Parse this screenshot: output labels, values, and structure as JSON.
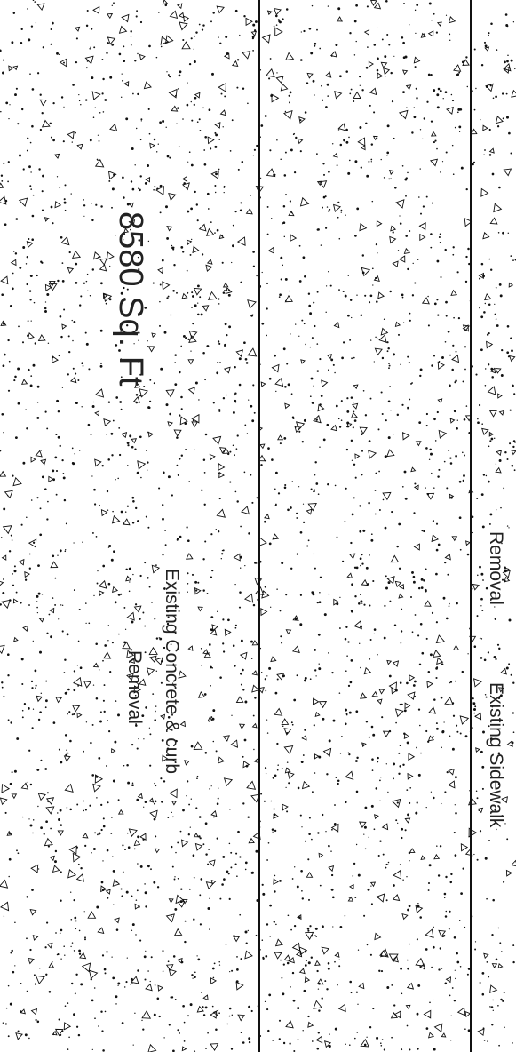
{
  "drawing": {
    "hatch": "concrete-stipple",
    "area_label": "8580 Sq. Ft",
    "concrete_removal": {
      "line1": "Existing Concrete & curb",
      "line2": "Removal"
    },
    "sidewalk": {
      "line1": "Removal",
      "line2": "Existing Sidewalk"
    }
  },
  "colors": {
    "background": "#ffffff",
    "ink": "#111111"
  }
}
